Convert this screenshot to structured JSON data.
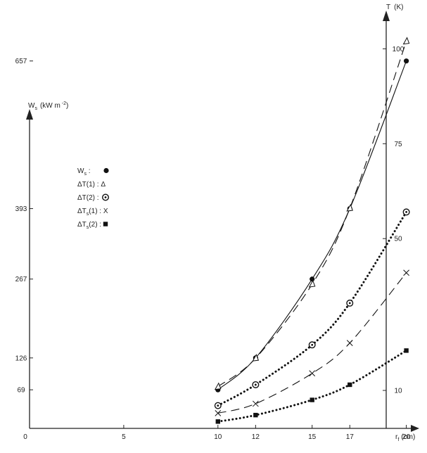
{
  "chart_data": {
    "type": "line",
    "x_axis": {
      "label": "r",
      "label_sub": "f",
      "unit": "(cm)",
      "ticks": [
        0,
        5,
        10,
        12,
        15,
        17,
        20
      ],
      "range": [
        0,
        21
      ]
    },
    "y_left": {
      "label": "W",
      "label_sub": "s",
      "unit": "(kW m",
      "unit_sup": "-2",
      "unit_close": ")",
      "ticks": [
        69,
        126,
        267,
        393,
        657
      ],
      "range": [
        0,
        870
      ]
    },
    "y_right": {
      "label": "T",
      "unit": "(K)",
      "ticks": [
        10,
        50,
        75,
        100
      ],
      "range": [
        0,
        107
      ]
    },
    "legend": {
      "placement": "upper-left",
      "items": [
        {
          "prefix": "W",
          "sub": "s",
          "suffix": " :",
          "marker": "filled-circle"
        },
        {
          "prefix": "ΔT(1)",
          "sub": "",
          "suffix": " :  Δ",
          "marker": "none"
        },
        {
          "prefix": "ΔT(2)",
          "sub": "",
          "suffix": " :",
          "marker": "dot-circle"
        },
        {
          "prefix": "ΔT",
          "sub": "s",
          "suffix": "(1)  :  X",
          "marker": "none"
        },
        {
          "prefix": "ΔT",
          "sub": "s",
          "suffix": "(2)  :",
          "marker": "filled-square"
        }
      ]
    },
    "series": [
      {
        "key": "Ws",
        "marker": "filled-circle",
        "line": "solid",
        "axis": "left",
        "x": [
          10,
          12,
          15,
          17,
          20
        ],
        "y": [
          69,
          126,
          267,
          393,
          657
        ]
      },
      {
        "key": "dT1",
        "marker": "triangle",
        "line": "dashed",
        "axis": "right",
        "x": [
          10,
          12,
          15,
          17,
          20
        ],
        "y": [
          11,
          18.5,
          38,
          58,
          102
        ]
      },
      {
        "key": "dT2",
        "marker": "dot-circle",
        "line": "dotted",
        "axis": "right",
        "x": [
          10,
          12,
          15,
          17,
          20
        ],
        "y": [
          6,
          11.5,
          22,
          33,
          57
        ]
      },
      {
        "key": "dTs1",
        "marker": "x",
        "line": "dashed",
        "axis": "right",
        "x": [
          10,
          12,
          15,
          17,
          20
        ],
        "y": [
          4,
          6.5,
          14.5,
          22.5,
          41
        ]
      },
      {
        "key": "dTs2",
        "marker": "filled-square",
        "line": "dotted",
        "axis": "right",
        "x": [
          10,
          12,
          15,
          17,
          20
        ],
        "y": [
          1.8,
          3.5,
          7.5,
          11.5,
          20.5
        ]
      }
    ]
  }
}
